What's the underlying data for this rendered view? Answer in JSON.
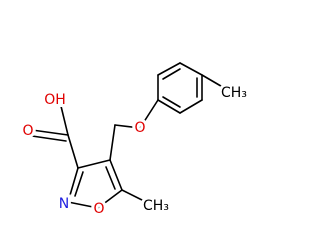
{
  "atoms": [
    {
      "label": "OH"
    },
    {
      "label": "O"
    },
    {
      "label": "O"
    },
    {
      "label": "N"
    },
    {
      "label": "O"
    },
    {
      "label": "CH₃"
    },
    {
      "label": "CH₃"
    }
  ]
}
